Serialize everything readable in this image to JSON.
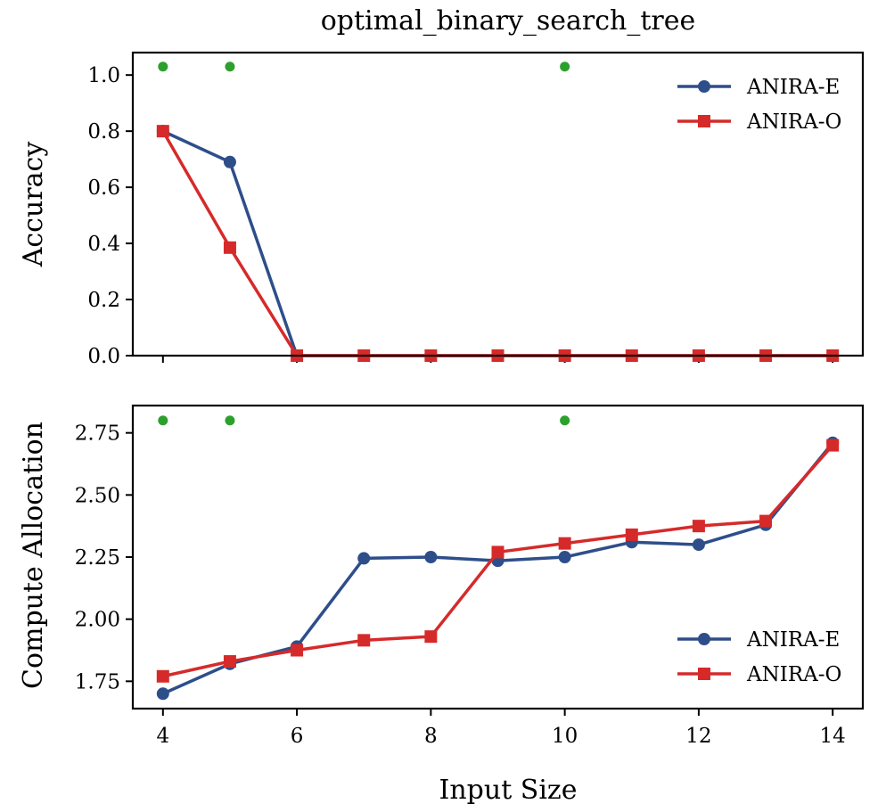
{
  "chart_data": [
    {
      "type": "line",
      "title": "optimal_binary_search_tree",
      "xlabel": "",
      "ylabel": "Accuracy",
      "x": [
        4,
        5,
        6,
        7,
        8,
        9,
        10,
        11,
        12,
        13,
        14
      ],
      "xlim": [
        3.55,
        14.45
      ],
      "ylim": [
        0.0,
        1.08
      ],
      "yticks": [
        0.0,
        0.2,
        0.4,
        0.6,
        0.8,
        1.0
      ],
      "ytick_labels": [
        "0.0",
        "0.2",
        "0.4",
        "0.6",
        "0.8",
        "1.0"
      ],
      "series": [
        {
          "name": "ANIRA-E",
          "color": "#2e4e8a",
          "marker": "circle",
          "values": [
            0.8,
            0.69,
            0.0,
            0.0,
            0.0,
            0.0,
            0.0,
            0.0,
            0.0,
            0.0,
            0.0
          ]
        },
        {
          "name": "ANIRA-O",
          "color": "#d62a2a",
          "marker": "square",
          "values": [
            0.8,
            0.385,
            0.0,
            0.0,
            0.0,
            0.0,
            0.0,
            0.0,
            0.0,
            0.0,
            0.0
          ]
        }
      ],
      "highlight_points": {
        "color": "#2ca02c",
        "x": [
          4,
          5,
          10
        ],
        "y": 1.03
      },
      "legend": {
        "placement": "top-right",
        "entries": [
          "ANIRA-E",
          "ANIRA-O"
        ]
      }
    },
    {
      "type": "line",
      "title": "",
      "xlabel": "Input Size",
      "ylabel": "Compute Allocation",
      "x": [
        4,
        5,
        6,
        7,
        8,
        9,
        10,
        11,
        12,
        13,
        14
      ],
      "xlim": [
        3.55,
        14.45
      ],
      "ylim": [
        1.64,
        2.86
      ],
      "xticks": [
        4,
        6,
        8,
        10,
        12,
        14
      ],
      "xtick_labels": [
        "4",
        "6",
        "8",
        "10",
        "12",
        "14"
      ],
      "yticks": [
        1.75,
        2.0,
        2.25,
        2.5,
        2.75
      ],
      "ytick_labels": [
        "1.75",
        "2.00",
        "2.25",
        "2.50",
        "2.75"
      ],
      "series": [
        {
          "name": "ANIRA-E",
          "color": "#2e4e8a",
          "marker": "circle",
          "values": [
            1.7,
            1.82,
            1.89,
            2.245,
            2.25,
            2.235,
            2.25,
            2.31,
            2.3,
            2.38,
            2.71
          ]
        },
        {
          "name": "ANIRA-O",
          "color": "#d62a2a",
          "marker": "square",
          "values": [
            1.77,
            1.83,
            1.875,
            1.915,
            1.93,
            2.27,
            2.305,
            2.34,
            2.375,
            2.395,
            2.7
          ]
        }
      ],
      "highlight_points": {
        "color": "#2ca02c",
        "x": [
          4,
          5,
          10
        ],
        "y": 2.8
      },
      "legend": {
        "placement": "bottom-right",
        "entries": [
          "ANIRA-E",
          "ANIRA-O"
        ]
      }
    }
  ]
}
